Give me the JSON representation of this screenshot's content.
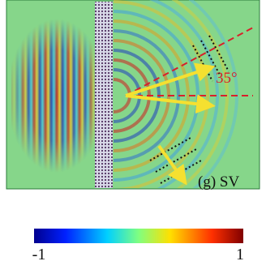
{
  "figure": {
    "angle_label": "35°",
    "panel_label": "(g) SV"
  },
  "colorbar": {
    "min_label": "-1",
    "max_label": "1"
  }
}
